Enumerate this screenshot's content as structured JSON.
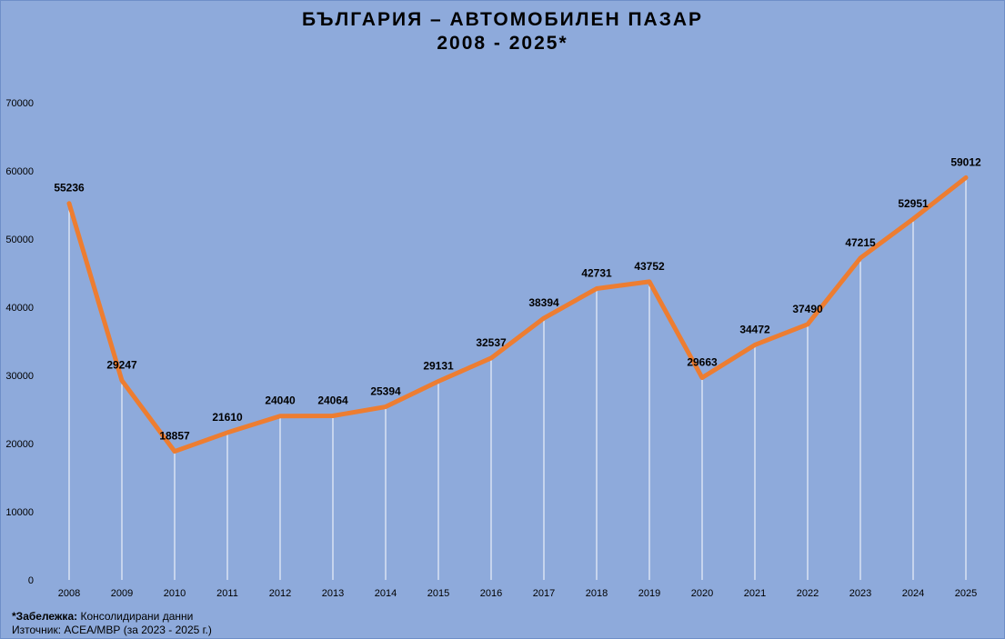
{
  "chart_data": {
    "type": "line",
    "title": "БЪЛГАРИЯ – АВТОМОБИЛЕН ПАЗАР",
    "subtitle": "2008  - 2025*",
    "categories": [
      "2008",
      "2009",
      "2010",
      "2011",
      "2012",
      "2013",
      "2014",
      "2015",
      "2016",
      "2017",
      "2018",
      "2019",
      "2020",
      "2021",
      "2022",
      "2023",
      "2024",
      "2025"
    ],
    "series": [
      {
        "values": [
          55236,
          29247,
          18857,
          21610,
          24040,
          24064,
          25394,
          29131,
          32537,
          38394,
          42731,
          43752,
          29663,
          34472,
          37490,
          47215,
          52951,
          59012
        ]
      }
    ],
    "ylim": [
      0,
      70000
    ],
    "yticks": [
      "0",
      "10000",
      "20000",
      "30000",
      "40000",
      "50000",
      "60000",
      "70000"
    ],
    "line_color": "#ed7d31",
    "drop_line_color": "#ffffff",
    "background_color": "#8eaadb",
    "grid": false,
    "legend": "none"
  },
  "footnote": {
    "note_label": "*Забележка:",
    "note_text": " Консолидирани данни",
    "source_text": "Източник: ACEA/МВР (за 2023 - 2025 г.)"
  }
}
